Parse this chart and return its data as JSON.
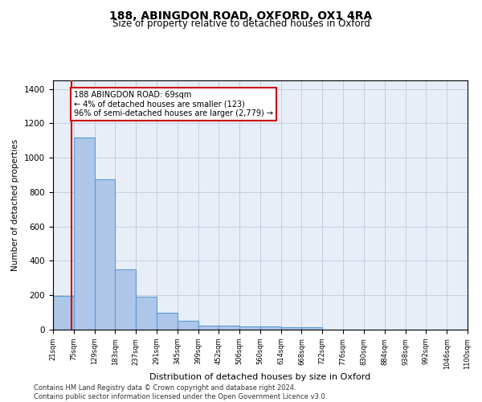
{
  "title": "188, ABINGDON ROAD, OXFORD, OX1 4RA",
  "subtitle": "Size of property relative to detached houses in Oxford",
  "xlabel": "Distribution of detached houses by size in Oxford",
  "ylabel": "Number of detached properties",
  "bin_edges": [
    21,
    75,
    129,
    183,
    237,
    291,
    345,
    399,
    452,
    506,
    560,
    614,
    668,
    722,
    776,
    830,
    884,
    938,
    992,
    1046,
    1100
  ],
  "bin_labels": [
    "21sqm",
    "75sqm",
    "129sqm",
    "183sqm",
    "237sqm",
    "291sqm",
    "345sqm",
    "399sqm",
    "452sqm",
    "506sqm",
    "560sqm",
    "614sqm",
    "668sqm",
    "722sqm",
    "776sqm",
    "830sqm",
    "884sqm",
    "938sqm",
    "992sqm",
    "1046sqm",
    "1100sqm"
  ],
  "bar_heights": [
    195,
    1120,
    875,
    350,
    190,
    100,
    53,
    25,
    25,
    18,
    18,
    13,
    13,
    0,
    0,
    0,
    0,
    0,
    0,
    0
  ],
  "bar_color": "#aec6e8",
  "bar_edge_color": "#5b9bd5",
  "property_size": 69,
  "vline_color": "#cc0000",
  "annotation_text": "188 ABINGDON ROAD: 69sqm\n← 4% of detached houses are smaller (123)\n96% of semi-detached houses are larger (2,779) →",
  "annotation_box_color": "#ffffff",
  "annotation_box_edge_color": "#cc0000",
  "ylim": [
    0,
    1450
  ],
  "yticks": [
    0,
    200,
    400,
    600,
    800,
    1000,
    1200,
    1400
  ],
  "background_color": "#e8eef7",
  "footer_text": "Contains HM Land Registry data © Crown copyright and database right 2024.\nContains public sector information licensed under the Open Government Licence v3.0.",
  "title_fontsize": 10,
  "subtitle_fontsize": 8.5,
  "annotation_fontsize": 7.0,
  "footer_fontsize": 6.0,
  "ylabel_fontsize": 7.5,
  "xlabel_fontsize": 8.0,
  "ytick_fontsize": 7.5,
  "xtick_fontsize": 6.0
}
